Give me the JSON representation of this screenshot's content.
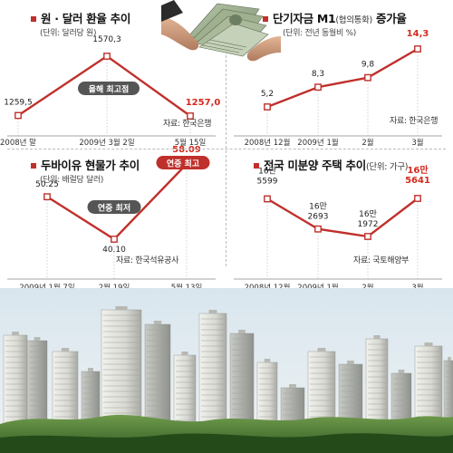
{
  "chart_data": [
    {
      "type": "line",
      "title": "원 · 달러 환율 추이",
      "unit": "(단위: 달러당 원)",
      "source": "자료: 한국은행",
      "categories": [
        "2008년 말",
        "2009년 3월 2일",
        "5월 15일"
      ],
      "series": [
        {
          "values": [
            1259.5,
            1570.3,
            1257.0
          ],
          "value_labels": [
            "1259,5",
            "1570,3",
            "1257,0"
          ]
        }
      ],
      "highlight_last": true,
      "annotations": [
        {
          "text": "올해 최고점",
          "at": 1
        }
      ]
    },
    {
      "type": "line",
      "title": "단기자금 M1",
      "title_small": "(협의통화)",
      "title_suffix": " 증가율",
      "unit": "(단위: 전년 동월비 %)",
      "source": "자료: 한국은행",
      "categories": [
        "2008년 12월",
        "2009년 1월",
        "2월",
        "3월"
      ],
      "series": [
        {
          "values": [
            5.2,
            8.3,
            9.8,
            14.3
          ],
          "value_labels": [
            "5,2",
            "8,3",
            "9,8",
            "14,3"
          ]
        }
      ],
      "highlight_last": true,
      "annotations": []
    },
    {
      "type": "line",
      "title": "두바이유 현물가 추이",
      "unit": "(단위: 배럴당 달러)",
      "source": "자료: 한국석유공사",
      "categories": [
        "2009년 1월 7일",
        "2월 19일",
        "5월 13일"
      ],
      "series": [
        {
          "values": [
            50.25,
            40.1,
            58.09
          ],
          "value_labels": [
            "50.25",
            "40.10",
            "58.09"
          ]
        }
      ],
      "highlight_last": true,
      "annotations": [
        {
          "text": "연중 최저",
          "at": 1
        },
        {
          "text": "연중 최고",
          "at": 2
        }
      ]
    },
    {
      "type": "line",
      "title": "전국 미분양 주택 추이",
      "title_small": "(단위: 가구)",
      "unit": "",
      "source": "자료: 국토해양부",
      "categories": [
        "2008년 12월",
        "2009년 1월",
        "2월",
        "3월"
      ],
      "series": [
        {
          "values": [
            165599,
            162693,
            161972,
            165641
          ],
          "value_labels": [
            "16만\n5599",
            "16만\n2693",
            "16만\n1972",
            "16만\n5641"
          ]
        }
      ],
      "highlight_last": true,
      "annotations": []
    }
  ],
  "colors": {
    "line": "#c0302b",
    "highlight": "#d42a1e",
    "badge": "#555555",
    "badge_highlight": "#c0302b"
  }
}
